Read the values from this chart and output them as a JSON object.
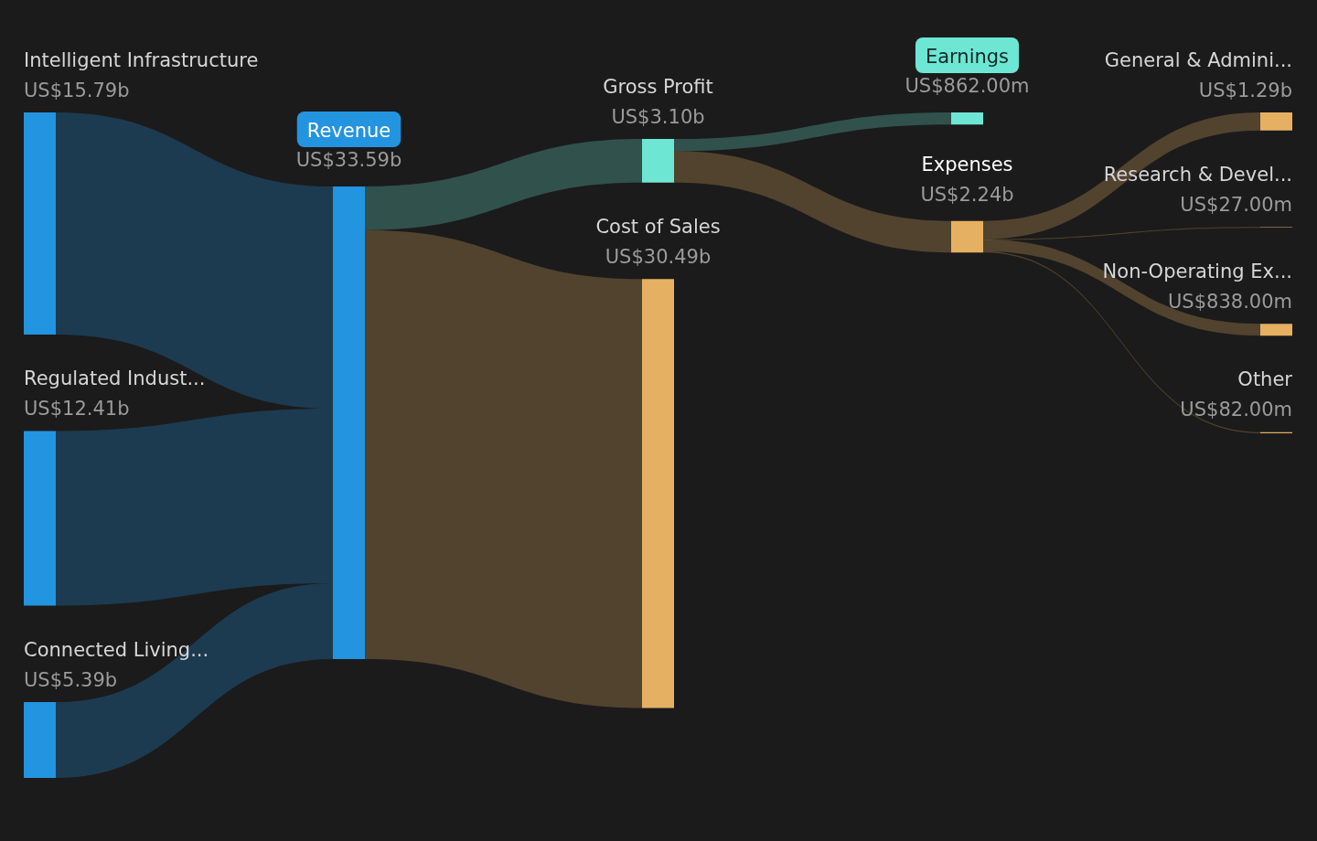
{
  "chart_data": {
    "type": "other",
    "categories": [
      "Intelligent Infrastructure",
      "Regulated Indust...",
      "Connected Living...",
      "Revenue",
      "Gross Profit",
      "Cost of Sales",
      "Earnings",
      "Expenses",
      "General & Admini...",
      "Research & Devel...",
      "Non-Operating Ex...",
      "Other"
    ],
    "values": [
      15790000000,
      12410000000,
      5390000000,
      33590000000,
      3100000000,
      30490000000,
      862000000,
      2240000000,
      1290000000,
      27000000,
      838000000,
      82000000
    ],
    "value_labels": [
      "US$15.79b",
      "US$12.41b",
      "US$5.39b",
      "US$33.59b",
      "US$3.10b",
      "US$30.49b",
      "US$862.00m",
      "US$2.24b",
      "US$1.29b",
      "US$27.00m",
      "US$838.00m",
      "US$82.00m"
    ],
    "colors": [
      "#2394e0",
      "#2394e0",
      "#2394e0",
      "#2394e0",
      "#6ee6d4",
      "#e6b062",
      "#6ee6d4",
      "#e6b062",
      "#e6b062",
      "#e6b062",
      "#e6b062",
      "#e6b062"
    ]
  }
}
